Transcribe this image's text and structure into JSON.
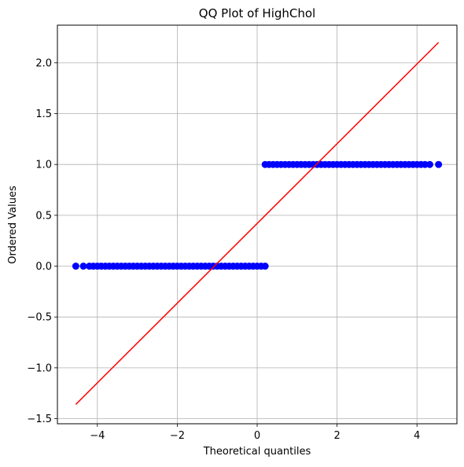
{
  "chart_data": {
    "type": "scatter",
    "title": "QQ Plot of HighChol",
    "xlabel": "Theoretical quantiles",
    "ylabel": "Ordered Values",
    "xlim": [
      -5.0,
      5.0
    ],
    "ylim": [
      -1.55,
      2.37
    ],
    "xticks": [
      -4,
      -2,
      0,
      2,
      4
    ],
    "xtick_labels": [
      "−4",
      "−2",
      "0",
      "2",
      "4"
    ],
    "yticks": [
      -1.5,
      -1.0,
      -0.5,
      0.0,
      0.5,
      1.0,
      1.5,
      2.0
    ],
    "ytick_labels": [
      "−1.5",
      "−1.0",
      "−0.5",
      "0.0",
      "0.5",
      "1.0",
      "1.5",
      "2.0"
    ],
    "grid": true,
    "marker_color": "#0000ff",
    "line_color": "#ff0000",
    "series": [
      {
        "kind": "points",
        "points": [
          [
            -4.54,
            0
          ],
          [
            -4.35,
            0
          ],
          [
            -4.2,
            0
          ],
          [
            -4.1,
            0
          ],
          [
            -4.0,
            0
          ],
          [
            -3.9,
            0
          ],
          [
            -3.8,
            0
          ],
          [
            -3.7,
            0
          ],
          [
            -3.6,
            0
          ],
          [
            -3.5,
            0
          ],
          [
            -3.4,
            0
          ],
          [
            -3.3,
            0
          ],
          [
            -3.2,
            0
          ],
          [
            -3.1,
            0
          ],
          [
            -3.0,
            0
          ],
          [
            -2.9,
            0
          ],
          [
            -2.8,
            0
          ],
          [
            -2.7,
            0
          ],
          [
            -2.6,
            0
          ],
          [
            -2.5,
            0
          ],
          [
            -2.4,
            0
          ],
          [
            -2.3,
            0
          ],
          [
            -2.2,
            0
          ],
          [
            -2.1,
            0
          ],
          [
            -2.0,
            0
          ],
          [
            -1.9,
            0
          ],
          [
            -1.8,
            0
          ],
          [
            -1.7,
            0
          ],
          [
            -1.6,
            0
          ],
          [
            -1.5,
            0
          ],
          [
            -1.4,
            0
          ],
          [
            -1.3,
            0
          ],
          [
            -1.2,
            0
          ],
          [
            -1.1,
            0
          ],
          [
            -1.0,
            0
          ],
          [
            -0.9,
            0
          ],
          [
            -0.8,
            0
          ],
          [
            -0.7,
            0
          ],
          [
            -0.6,
            0
          ],
          [
            -0.5,
            0
          ],
          [
            -0.4,
            0
          ],
          [
            -0.3,
            0
          ],
          [
            -0.2,
            0
          ],
          [
            -0.1,
            0
          ],
          [
            0.0,
            0
          ],
          [
            0.1,
            0
          ],
          [
            0.2,
            0
          ],
          [
            0.2,
            1
          ],
          [
            0.3,
            1
          ],
          [
            0.4,
            1
          ],
          [
            0.5,
            1
          ],
          [
            0.6,
            1
          ],
          [
            0.7,
            1
          ],
          [
            0.8,
            1
          ],
          [
            0.9,
            1
          ],
          [
            1.0,
            1
          ],
          [
            1.1,
            1
          ],
          [
            1.2,
            1
          ],
          [
            1.3,
            1
          ],
          [
            1.4,
            1
          ],
          [
            1.5,
            1
          ],
          [
            1.6,
            1
          ],
          [
            1.7,
            1
          ],
          [
            1.8,
            1
          ],
          [
            1.9,
            1
          ],
          [
            2.0,
            1
          ],
          [
            2.1,
            1
          ],
          [
            2.2,
            1
          ],
          [
            2.3,
            1
          ],
          [
            2.4,
            1
          ],
          [
            2.5,
            1
          ],
          [
            2.6,
            1
          ],
          [
            2.7,
            1
          ],
          [
            2.8,
            1
          ],
          [
            2.9,
            1
          ],
          [
            3.0,
            1
          ],
          [
            3.1,
            1
          ],
          [
            3.2,
            1
          ],
          [
            3.3,
            1
          ],
          [
            3.4,
            1
          ],
          [
            3.5,
            1
          ],
          [
            3.6,
            1
          ],
          [
            3.7,
            1
          ],
          [
            3.8,
            1
          ],
          [
            3.9,
            1
          ],
          [
            4.0,
            1
          ],
          [
            4.1,
            1
          ],
          [
            4.2,
            1
          ],
          [
            4.32,
            1
          ],
          [
            4.54,
            1
          ]
        ]
      },
      {
        "kind": "line",
        "points": [
          [
            -4.54,
            -1.36
          ],
          [
            4.54,
            2.2
          ]
        ]
      }
    ]
  }
}
